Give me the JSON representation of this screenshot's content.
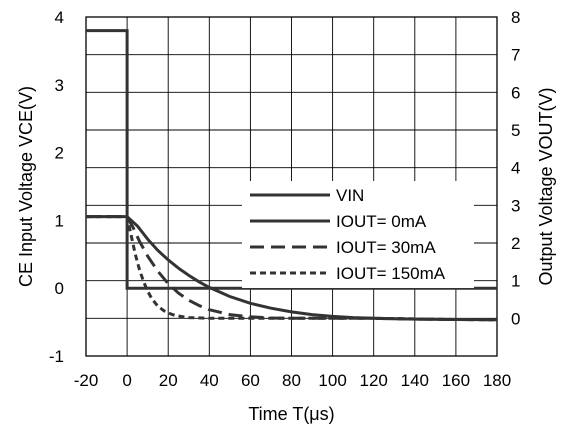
{
  "chart_data": {
    "type": "line",
    "xlabel": "Time T(μs)",
    "ylabel_left": "CE Input Voltage VCE(V)",
    "ylabel_right": "Output Voltage VOUT(V)",
    "xlim": [
      -20,
      180
    ],
    "ylim_left": [
      -1,
      4
    ],
    "ylim_right": [
      -1,
      8
    ],
    "x_ticks": [
      "-20",
      "0",
      "20",
      "40",
      "60",
      "80",
      "100",
      "120",
      "140",
      "160",
      "180"
    ],
    "y_left_ticks": [
      "4",
      "3",
      "2",
      "1",
      "0",
      "-1"
    ],
    "y_right_ticks": [
      "8",
      "7",
      "6",
      "5",
      "4",
      "3",
      "2",
      "1",
      "0"
    ],
    "grid": true,
    "legend_position": "center-right",
    "series": [
      {
        "name": "VIN",
        "axis": "left",
        "style": "solid",
        "x": [
          -20,
          0,
          0,
          180
        ],
        "y": [
          3.8,
          3.8,
          0,
          0
        ]
      },
      {
        "name": "IOUT= 0mA",
        "axis": "right",
        "style": "solid",
        "x": [
          -20,
          0,
          5,
          10,
          15,
          20,
          25,
          30,
          35,
          40,
          50,
          60,
          70,
          80,
          90,
          100,
          110,
          120,
          140,
          160,
          180
        ],
        "y": [
          2.7,
          2.7,
          2.45,
          2.1,
          1.8,
          1.55,
          1.33,
          1.14,
          0.97,
          0.82,
          0.58,
          0.4,
          0.27,
          0.17,
          0.1,
          0.05,
          0.02,
          0.0,
          -0.02,
          -0.03,
          -0.04
        ]
      },
      {
        "name": "IOUT= 30mA",
        "axis": "right",
        "style": "dashed",
        "x": [
          -20,
          0,
          3,
          6,
          10,
          15,
          20,
          25,
          30,
          35,
          40,
          50,
          60,
          70,
          80,
          100,
          120,
          140,
          160,
          180
        ],
        "y": [
          2.7,
          2.7,
          2.4,
          2.05,
          1.65,
          1.25,
          0.92,
          0.67,
          0.48,
          0.34,
          0.23,
          0.1,
          0.04,
          0.01,
          0.0,
          0.0,
          0.0,
          -0.02,
          -0.03,
          -0.04
        ]
      },
      {
        "name": "IOUT= 150mA",
        "axis": "right",
        "style": "dotted",
        "x": [
          -20,
          0,
          2,
          4,
          6,
          8,
          10,
          12,
          15,
          18,
          22,
          26,
          30,
          40,
          60,
          80,
          120,
          160,
          180
        ],
        "y": [
          2.7,
          2.7,
          2.2,
          1.7,
          1.3,
          0.98,
          0.72,
          0.52,
          0.32,
          0.2,
          0.1,
          0.05,
          0.02,
          0.0,
          0.0,
          0.0,
          0.0,
          -0.03,
          -0.04
        ]
      }
    ]
  }
}
